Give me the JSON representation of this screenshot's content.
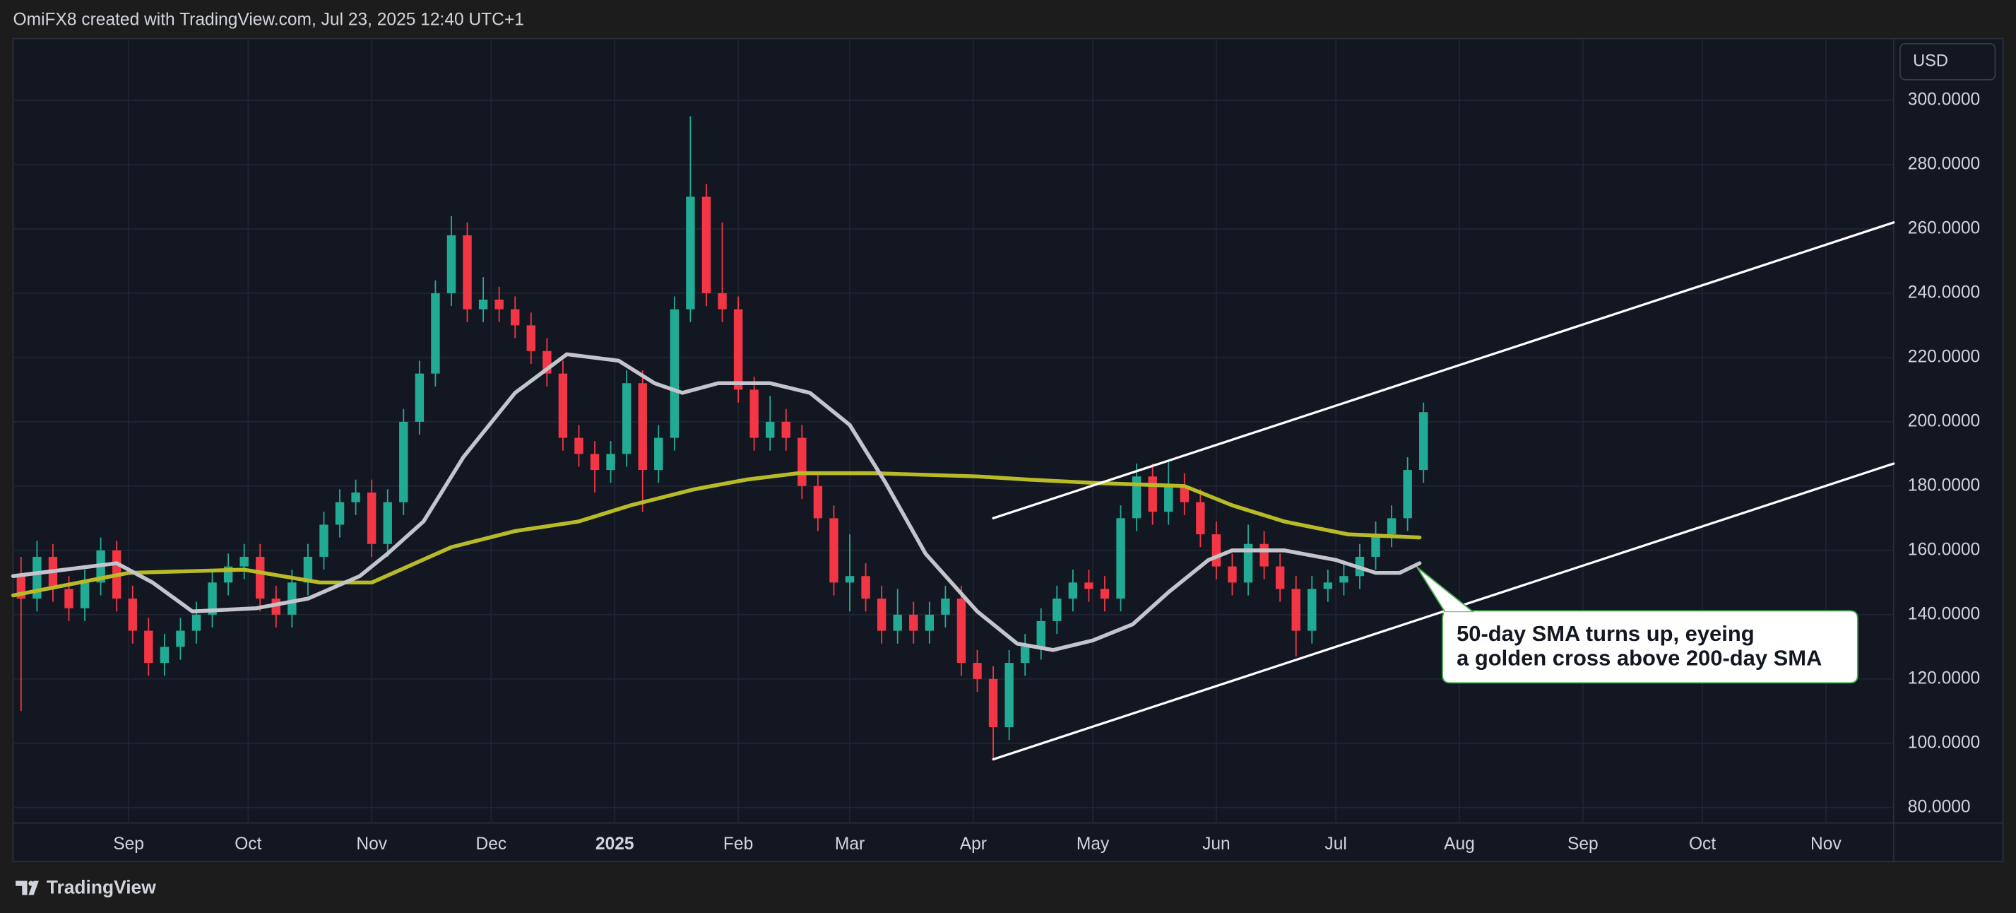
{
  "header": "OmiFX8 created with TradingView.com, Jul 23, 2025 12:40 UTC+1",
  "footer": "TradingView",
  "chart_data": {
    "type": "candlestick",
    "currency": "USD",
    "up_color": "#22ab94",
    "down_color": "#f23645",
    "grid": true,
    "xlim": [
      0,
      472
    ],
    "ylim": [
      75.2,
      319.2
    ],
    "yticks": [
      {
        "value": 80,
        "label": "80.0000"
      },
      {
        "value": 100,
        "label": "100.0000"
      },
      {
        "value": 120,
        "label": "120.0000"
      },
      {
        "value": 140,
        "label": "140.0000"
      },
      {
        "value": 160,
        "label": "160.0000"
      },
      {
        "value": 180,
        "label": "180.0000"
      },
      {
        "value": 200,
        "label": "200.0000"
      },
      {
        "value": 220,
        "label": "220.0000"
      },
      {
        "value": 240,
        "label": "240.0000"
      },
      {
        "value": 260,
        "label": "260.0000"
      },
      {
        "value": 280,
        "label": "280.0000"
      },
      {
        "value": 300,
        "label": "300.0000"
      }
    ],
    "xticks": [
      {
        "value": 29,
        "label": "Sep"
      },
      {
        "value": 59,
        "label": "Oct"
      },
      {
        "value": 90,
        "label": "Nov"
      },
      {
        "value": 120,
        "label": "Dec"
      },
      {
        "value": 151,
        "label": "2025"
      },
      {
        "value": 182,
        "label": "Feb"
      },
      {
        "value": 210,
        "label": "Mar"
      },
      {
        "value": 241,
        "label": "Apr"
      },
      {
        "value": 271,
        "label": "May"
      },
      {
        "value": 302,
        "label": "Jun"
      },
      {
        "value": 332,
        "label": "Jul"
      },
      {
        "value": 363,
        "label": "Aug"
      },
      {
        "value": 394,
        "label": "Sep"
      },
      {
        "value": 424,
        "label": "Oct"
      },
      {
        "value": 455,
        "label": "Nov"
      }
    ],
    "candles": {
      "x": [
        2,
        6,
        10,
        14,
        18,
        22,
        26,
        30,
        34,
        38,
        42,
        46,
        50,
        54,
        58,
        62,
        66,
        70,
        74,
        78,
        82,
        86,
        90,
        94,
        98,
        102,
        106,
        110,
        114,
        118,
        122,
        126,
        130,
        134,
        138,
        142,
        146,
        150,
        154,
        158,
        162,
        166,
        170,
        174,
        178,
        182,
        186,
        190,
        194,
        198,
        202,
        206,
        210,
        214,
        218,
        222,
        226,
        230,
        234,
        238,
        242,
        246,
        250,
        254,
        258,
        262,
        266,
        270,
        274,
        278,
        282,
        286,
        290,
        294,
        298,
        302,
        306,
        310,
        314,
        318,
        322,
        326,
        330,
        334,
        338,
        342,
        346,
        350,
        354
      ],
      "values": [
        [
          152,
          158,
          110,
          145
        ],
        [
          145,
          163,
          141,
          158
        ],
        [
          158,
          162,
          144,
          148
        ],
        [
          148,
          152,
          138,
          142
        ],
        [
          142,
          154,
          138,
          150
        ],
        [
          150,
          164,
          146,
          160
        ],
        [
          160,
          163,
          141,
          145
        ],
        [
          145,
          149,
          131,
          135
        ],
        [
          135,
          139,
          121,
          125
        ],
        [
          125,
          134,
          121,
          130
        ],
        [
          130,
          139,
          126,
          135
        ],
        [
          135,
          144,
          131,
          140
        ],
        [
          140,
          154,
          136,
          150
        ],
        [
          150,
          159,
          146,
          155
        ],
        [
          155,
          162,
          151,
          158
        ],
        [
          158,
          162,
          141,
          145
        ],
        [
          145,
          149,
          136,
          140
        ],
        [
          140,
          154,
          136,
          150
        ],
        [
          150,
          162,
          146,
          158
        ],
        [
          158,
          172,
          154,
          168
        ],
        [
          168,
          179,
          164,
          175
        ],
        [
          175,
          182,
          171,
          178
        ],
        [
          178,
          182,
          158,
          162
        ],
        [
          162,
          179,
          158,
          175
        ],
        [
          175,
          204,
          171,
          200
        ],
        [
          200,
          219,
          196,
          215
        ],
        [
          215,
          244,
          211,
          240
        ],
        [
          240,
          264,
          236,
          258
        ],
        [
          258,
          262,
          231,
          235
        ],
        [
          235,
          245,
          231,
          238
        ],
        [
          238,
          242,
          231,
          235
        ],
        [
          235,
          239,
          226,
          230
        ],
        [
          230,
          234,
          218,
          222
        ],
        [
          222,
          226,
          211,
          215
        ],
        [
          215,
          219,
          191,
          195
        ],
        [
          195,
          199,
          186,
          190
        ],
        [
          190,
          194,
          178,
          185
        ],
        [
          185,
          194,
          181,
          190
        ],
        [
          190,
          216,
          186,
          212
        ],
        [
          212,
          216,
          172,
          185
        ],
        [
          185,
          199,
          181,
          195
        ],
        [
          195,
          239,
          191,
          235
        ],
        [
          235,
          295,
          231,
          270
        ],
        [
          270,
          274,
          236,
          240
        ],
        [
          240,
          262,
          231,
          235
        ],
        [
          235,
          239,
          206,
          210
        ],
        [
          210,
          214,
          191,
          195
        ],
        [
          195,
          208,
          191,
          200
        ],
        [
          200,
          204,
          191,
          195
        ],
        [
          195,
          199,
          176,
          180
        ],
        [
          180,
          184,
          166,
          170
        ],
        [
          170,
          174,
          146,
          150
        ],
        [
          150,
          165,
          141,
          152
        ],
        [
          152,
          156,
          141,
          145
        ],
        [
          145,
          149,
          131,
          135
        ],
        [
          135,
          148,
          131,
          140
        ],
        [
          140,
          144,
          131,
          135
        ],
        [
          135,
          144,
          131,
          140
        ],
        [
          140,
          149,
          136,
          145
        ],
        [
          145,
          149,
          121,
          125
        ],
        [
          125,
          129,
          116,
          120
        ],
        [
          120,
          124,
          95,
          105
        ],
        [
          105,
          129,
          101,
          125
        ],
        [
          125,
          134,
          121,
          130
        ],
        [
          130,
          142,
          126,
          138
        ],
        [
          138,
          149,
          134,
          145
        ],
        [
          145,
          154,
          141,
          150
        ],
        [
          150,
          154,
          144,
          148
        ],
        [
          148,
          152,
          141,
          145
        ],
        [
          145,
          174,
          141,
          170
        ],
        [
          170,
          187,
          166,
          183
        ],
        [
          183,
          187,
          168,
          172
        ],
        [
          172,
          188,
          168,
          180
        ],
        [
          180,
          184,
          171,
          175
        ],
        [
          175,
          179,
          161,
          165
        ],
        [
          165,
          169,
          151,
          155
        ],
        [
          155,
          159,
          146,
          150
        ],
        [
          150,
          168,
          146,
          162
        ],
        [
          162,
          166,
          151,
          155
        ],
        [
          155,
          159,
          144,
          148
        ],
        [
          148,
          152,
          127,
          135
        ],
        [
          135,
          152,
          131,
          148
        ],
        [
          148,
          154,
          144,
          150
        ],
        [
          150,
          156,
          146,
          152
        ],
        [
          152,
          162,
          148,
          158
        ],
        [
          158,
          169,
          154,
          165
        ],
        [
          165,
          174,
          161,
          170
        ],
        [
          170,
          189,
          166,
          185
        ],
        [
          185,
          206,
          181,
          203
        ]
      ]
    },
    "series": [
      {
        "color": "#b8bb26",
        "x": [
          0,
          29,
          58,
          77,
          90,
          110,
          126,
          142,
          155,
          171,
          184,
          197,
          216,
          242,
          255,
          271,
          294,
          306,
          319,
          335,
          353
        ],
        "values": [
          146,
          153,
          154,
          150,
          150,
          161,
          166,
          169,
          174,
          179,
          182,
          184,
          184,
          183,
          182,
          181,
          180,
          174,
          169,
          165,
          164
        ]
      },
      {
        "color": "#c4c4cc",
        "x": [
          0,
          13,
          26,
          35,
          45,
          61,
          74,
          87,
          94,
          103,
          113,
          126,
          139,
          152,
          161,
          168,
          177,
          190,
          200,
          210,
          219,
          229,
          242,
          252,
          261,
          271,
          281,
          290,
          300,
          306,
          319,
          332,
          342,
          348,
          353
        ],
        "values": [
          152,
          154,
          156,
          150,
          141,
          142,
          145,
          152,
          159,
          169,
          189,
          209,
          221,
          219,
          212,
          209,
          212,
          212,
          209,
          199,
          181,
          159,
          141,
          131,
          129,
          132,
          137,
          147,
          157,
          160,
          160,
          157,
          153,
          153,
          156
        ]
      }
    ],
    "trendlines": [
      {
        "color": "#ffffff",
        "x": [
          246,
          472
        ],
        "values": [
          170,
          262
        ]
      },
      {
        "color": "#ffffff",
        "x": [
          246,
          472
        ],
        "values": [
          95,
          187
        ]
      }
    ],
    "annotation": [
      "50-day SMA turns up, eyeing",
      "a golden cross above 200-day SMA"
    ]
  }
}
